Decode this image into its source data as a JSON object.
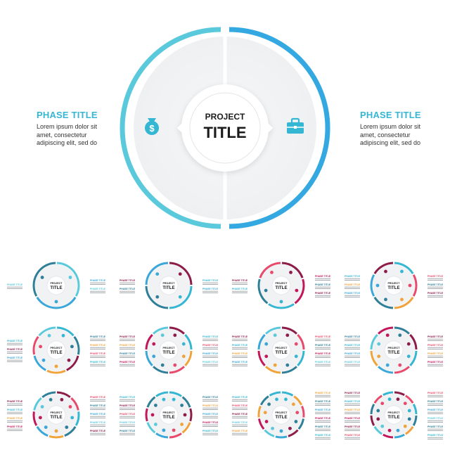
{
  "hero": {
    "center_line1": "PROJECT",
    "center_line2": "TITLE",
    "left": {
      "title": "PHASE TITLE",
      "text_lines": [
        "Lorem ipsum dolor sit",
        "amet, consectetur",
        "adipiscing elit, sed do"
      ],
      "icon": "money-bag-icon",
      "ring_color": "#5bc9dc"
    },
    "right": {
      "title": "PHASE TITLE",
      "text_lines": [
        "Lorem ipsum dolor sit",
        "amet, consectetur",
        "adipiscing elit, sed do"
      ],
      "icon": "briefcase-icon",
      "ring_color": "#34a8e0"
    }
  },
  "thumbnails": {
    "center_line1": "PROJECT",
    "center_line2": "TITLE",
    "phase_label": "PHASE TITLE",
    "items": [
      {
        "segments": [
          "#5bc9dc",
          "#3aa7d8",
          "#2f7f99"
        ]
      },
      {
        "segments": [
          "#8e1c4a",
          "#35b6d3",
          "#2f7f99",
          "#3aa7d8"
        ]
      },
      {
        "segments": [
          "#8e1c4a",
          "#c2185b",
          "#35b6d3",
          "#2f7f99",
          "#e84a6b"
        ]
      },
      {
        "segments": [
          "#35b6d3",
          "#e84a6b",
          "#f0a33a",
          "#2f7f99",
          "#3aa7d8",
          "#8e1c4a"
        ]
      },
      {
        "segments": [
          "#35b6d3",
          "#2f7f99",
          "#8e1c4a",
          "#f0a33a",
          "#3aa7d8",
          "#e84a6b",
          "#5bc9dc"
        ]
      },
      {
        "segments": [
          "#8e1c4a",
          "#35b6d3",
          "#f0a33a",
          "#e84a6b",
          "#2f7f99",
          "#3aa7d8",
          "#c2185b",
          "#5bc9dc"
        ]
      },
      {
        "segments": [
          "#8e1c4a",
          "#e84a6b",
          "#35b6d3",
          "#2f7f99",
          "#f0a33a",
          "#c2185b",
          "#3aa7d8",
          "#5bc9dc"
        ]
      },
      {
        "segments": [
          "#2f7f99",
          "#8e1c4a",
          "#35b6d3",
          "#e84a6b",
          "#3aa7d8",
          "#f0a33a",
          "#5bc9dc",
          "#c2185b"
        ]
      },
      {
        "segments": [
          "#8e1c4a",
          "#e84a6b",
          "#35b6d3",
          "#2f7f99",
          "#f0a33a",
          "#3aa7d8",
          "#c2185b",
          "#5bc9dc",
          "#2f7f99"
        ]
      },
      {
        "segments": [
          "#35b6d3",
          "#2f7f99",
          "#8e1c4a",
          "#f0a33a",
          "#e84a6b",
          "#3aa7d8",
          "#5bc9dc",
          "#c2185b",
          "#2f7f99",
          "#35b6d3"
        ]
      },
      {
        "segments": [
          "#35b6d3",
          "#f0a33a",
          "#e84a6b",
          "#2f7f99",
          "#8e1c4a",
          "#3aa7d8",
          "#5bc9dc",
          "#c2185b",
          "#f0a33a",
          "#2f7f99",
          "#35b6d3"
        ]
      },
      {
        "segments": [
          "#8e1c4a",
          "#e84a6b",
          "#35b6d3",
          "#2f7f99",
          "#f0a33a",
          "#3aa7d8",
          "#c2185b",
          "#5bc9dc",
          "#8e1c4a",
          "#2f7f99",
          "#e84a6b",
          "#35b6d3"
        ]
      }
    ]
  },
  "colors": {
    "background": "#ffffff",
    "disk": "#f3f4f6",
    "accent": "#35b6d3",
    "title_text": "#1b1b1b"
  }
}
